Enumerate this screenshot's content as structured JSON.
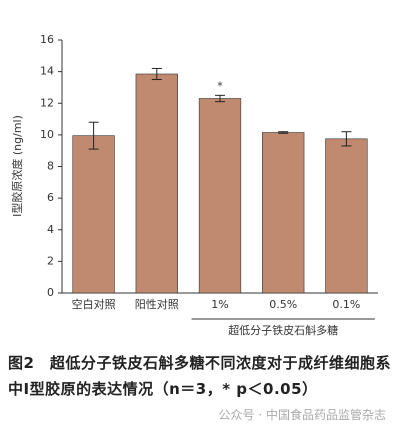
{
  "chart_data": {
    "type": "bar",
    "ylabel": "Ⅰ型胶原浓度 (ng/ml)",
    "categories": [
      "空白对照",
      "阳性对照",
      "1%",
      "0.5%",
      "0.1%"
    ],
    "values": [
      9.95,
      13.85,
      12.3,
      10.15,
      9.75
    ],
    "errors": [
      0.85,
      0.35,
      0.2,
      0.05,
      0.45
    ],
    "color": "#bf8a6f",
    "ylim": [
      0,
      16
    ],
    "yticks": [
      0,
      2,
      4,
      6,
      8,
      10,
      12,
      14,
      16
    ],
    "group_label": "超低分子铁皮石斛多糖",
    "annotations": [
      {
        "category": "1%",
        "text": "*"
      }
    ]
  },
  "caption": "图2　超低分子铁皮石斛多糖不同浓度对于成纤维细胞系中Ⅰ型胶原的表达情况（n＝3，* p＜0.05）",
  "watermark": "公众号 · 中国食品药品监管杂志"
}
